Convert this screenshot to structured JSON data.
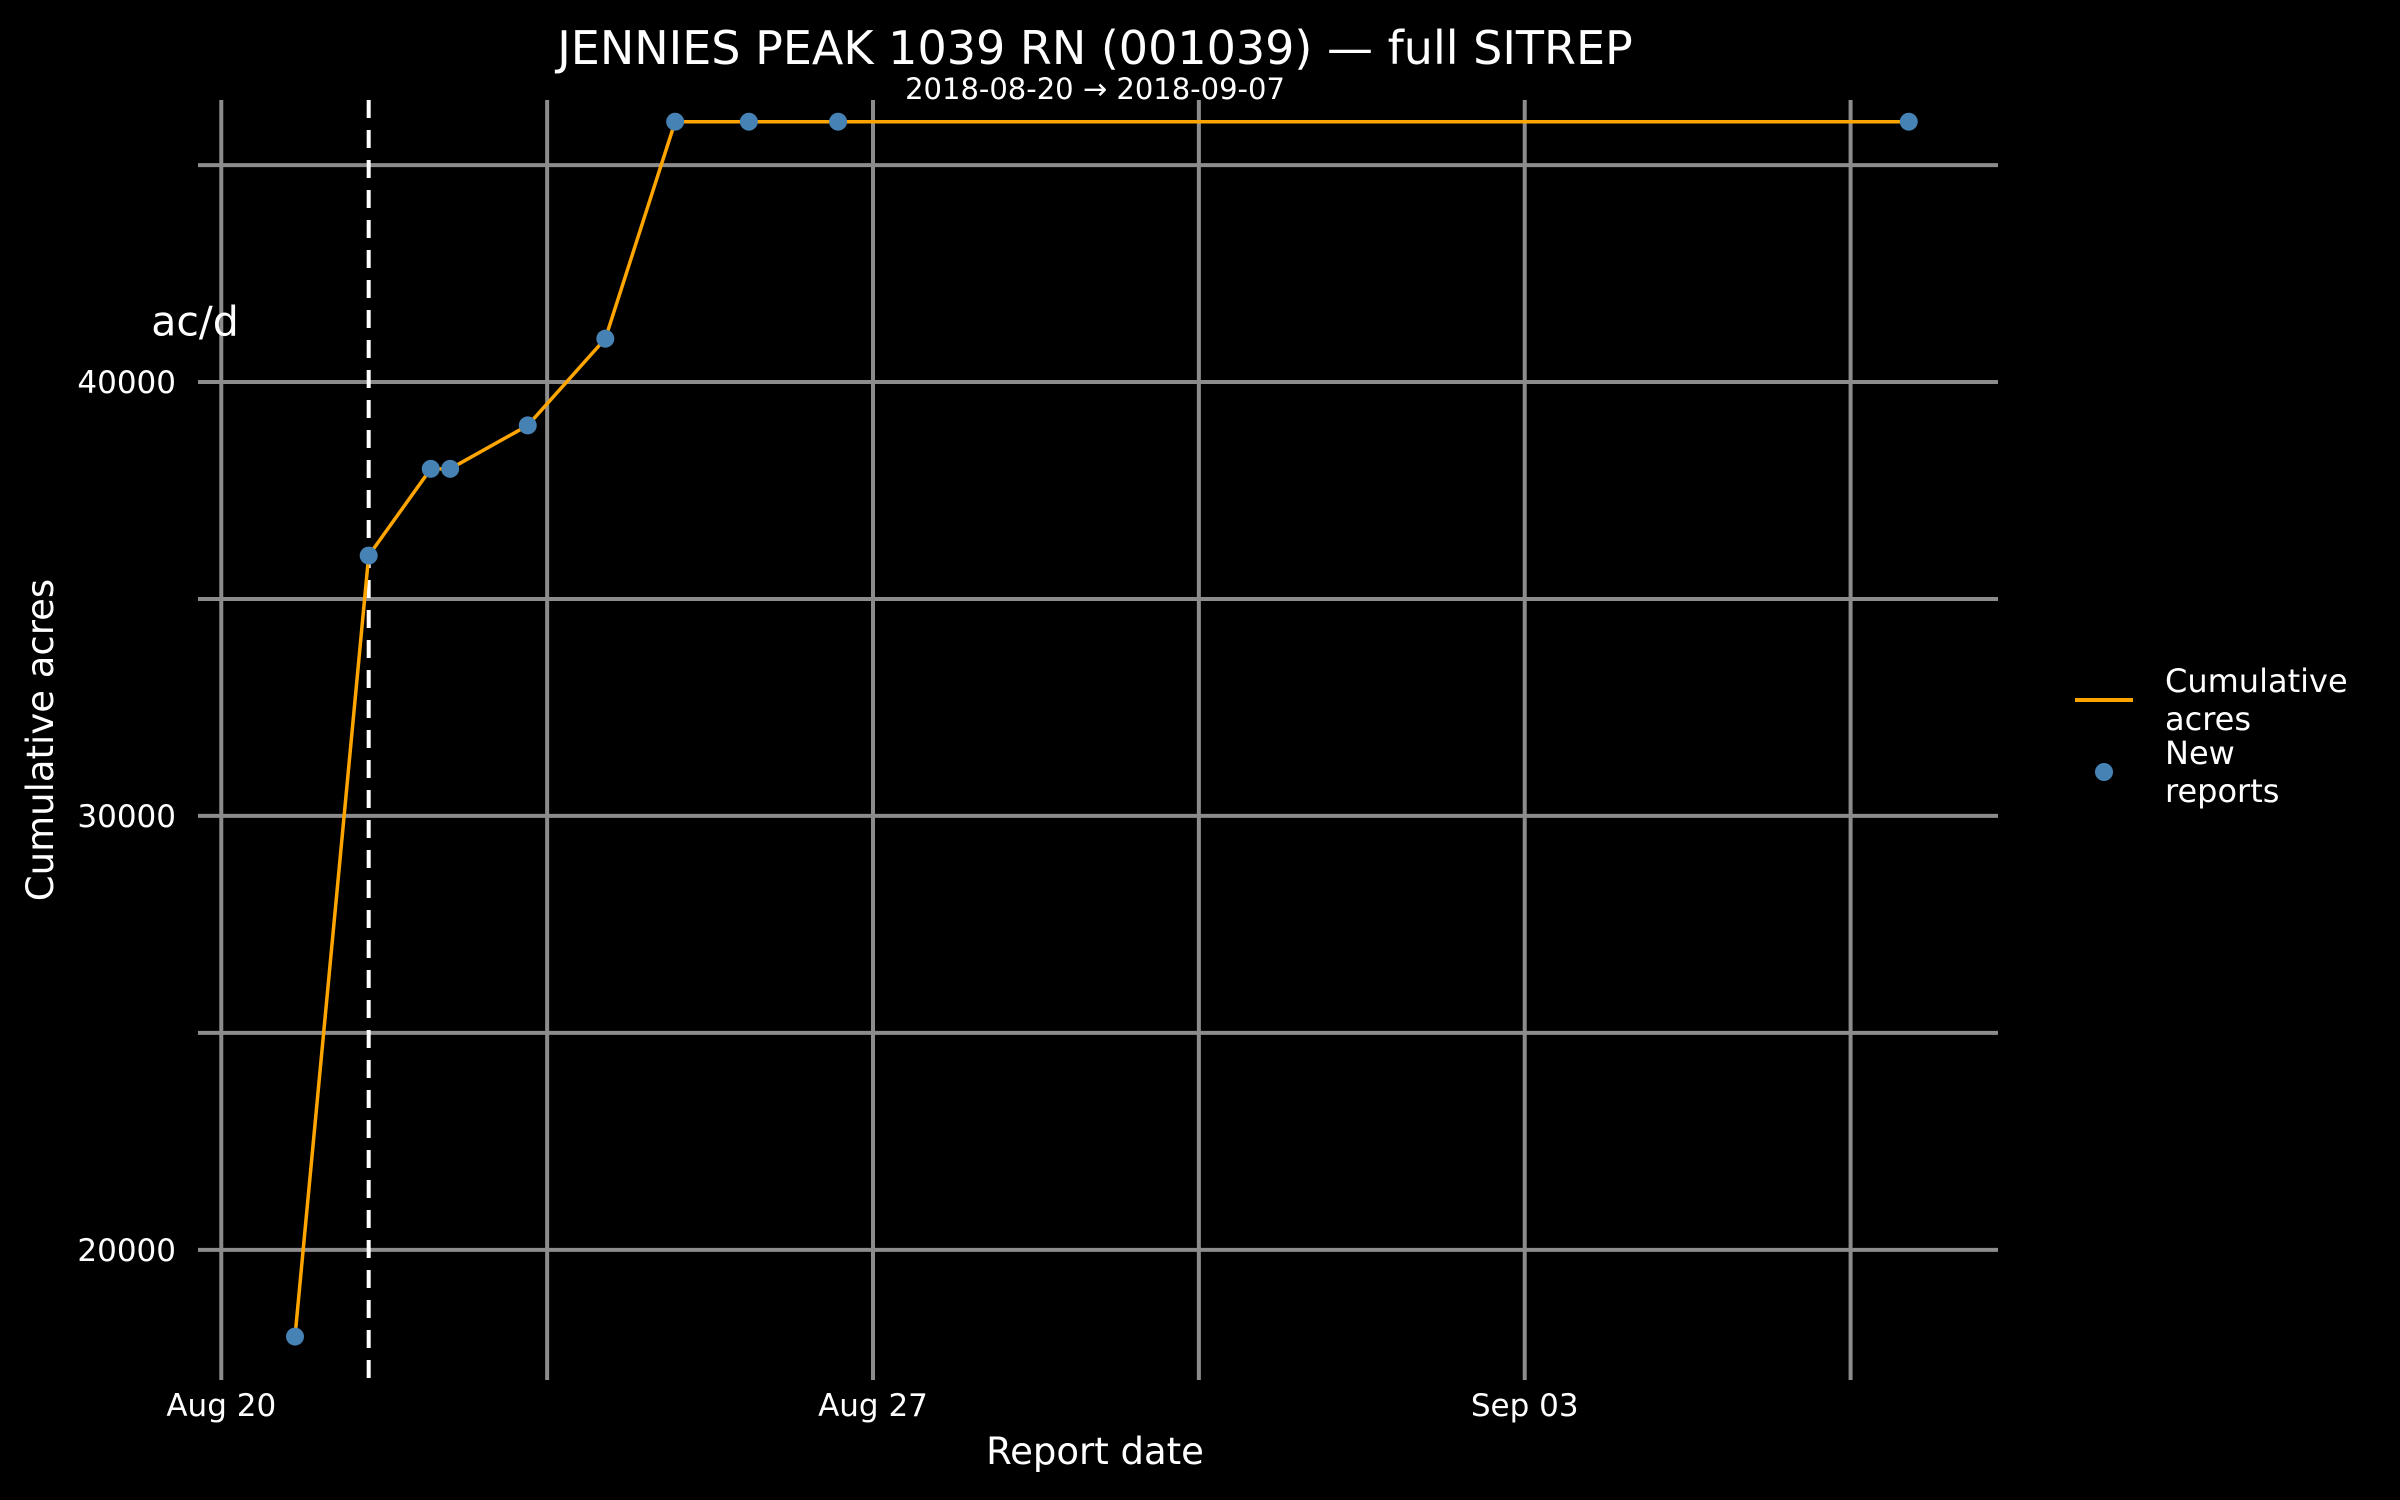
{
  "chart_data": {
    "type": "line",
    "title": "JENNIES PEAK 1039 RN (001039) — full SITREP",
    "subtitle": "2018-08-20 → 2018-09-07",
    "xlabel": "Report date",
    "ylabel": "Cumulative acres",
    "x_range": [
      "2018-08-19T18:00",
      "2018-09-08T02:00"
    ],
    "ylim": [
      17000,
      46500
    ],
    "x_ticks": [
      {
        "date": "2018-08-20",
        "label": "Aug 20"
      },
      {
        "date": "2018-08-27",
        "label": "Aug 27"
      },
      {
        "date": "2018-09-03",
        "label": "Sep 03"
      }
    ],
    "y_ticks": [
      20000,
      30000,
      40000
    ],
    "grid": true,
    "colors": {
      "line": "#FFA500",
      "points": "#4682B4",
      "grid": "#8c8c8c",
      "vline": "#ffffff"
    },
    "series": [
      {
        "name": "Cumulative acres",
        "kind": "line",
        "x": [
          "2018-08-20T19:00",
          "2018-08-21T14:00",
          "2018-08-22T06:00",
          "2018-08-22T11:00",
          "2018-08-23T07:00",
          "2018-08-24T03:00",
          "2018-08-24T21:00",
          "2018-08-25T16:00",
          "2018-08-26T15:00",
          "2018-09-07T03:00"
        ],
        "y": [
          18000,
          36000,
          38000,
          38000,
          39000,
          41000,
          46000,
          46000,
          46000,
          46000
        ]
      },
      {
        "name": "New reports",
        "kind": "points",
        "x": [
          "2018-08-20T19:00",
          "2018-08-21T14:00",
          "2018-08-22T06:00",
          "2018-08-22T11:00",
          "2018-08-23T07:00",
          "2018-08-24T03:00",
          "2018-08-24T21:00",
          "2018-08-25T16:00",
          "2018-08-26T15:00",
          "2018-09-07T03:00"
        ],
        "y": [
          18000,
          36000,
          38000,
          38000,
          39000,
          41000,
          46000,
          46000,
          46000,
          46000
        ]
      }
    ],
    "vline": {
      "x": "2018-08-21T14:00",
      "style": "dashed"
    },
    "annotation": {
      "text": "ac/d",
      "x": "2018-08-20T00:00",
      "y": 41400
    },
    "legend": {
      "placement": "right",
      "items": [
        "Cumulative acres",
        "New reports"
      ]
    }
  }
}
